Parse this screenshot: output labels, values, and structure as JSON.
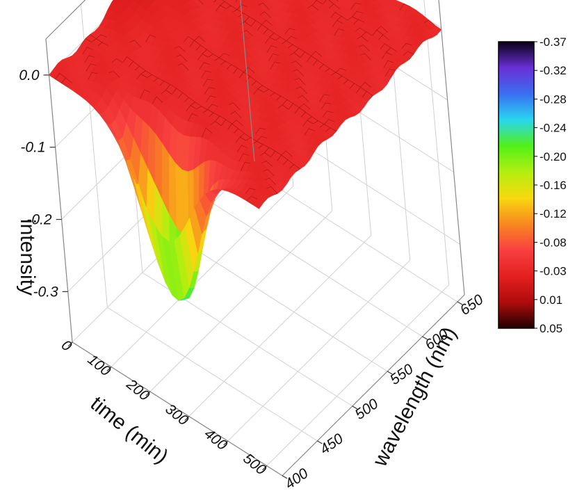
{
  "chart_data": {
    "type": "surface3d",
    "title": "",
    "zlabel": "intensity",
    "xlabel": "time (min)",
    "ylabel": "wavelength (nm)",
    "z_ticks": [
      "0.0",
      "-0.1",
      "-0.2",
      "-0.3"
    ],
    "z_tick_values": [
      0.0,
      -0.1,
      -0.2,
      -0.3
    ],
    "time_ticks": [
      "0",
      "100",
      "200",
      "300",
      "400",
      "500"
    ],
    "time_tick_values": [
      0,
      100,
      200,
      300,
      400,
      500
    ],
    "wavelength_ticks": [
      "400",
      "450",
      "500",
      "550",
      "600",
      "650"
    ],
    "wavelength_tick_values": [
      400,
      450,
      500,
      550,
      600,
      650
    ],
    "time_range": [
      0,
      540
    ],
    "wavelength_range": [
      400,
      660
    ],
    "zlim": [
      -0.37,
      0.05
    ],
    "grid": true,
    "surface": {
      "baseline_intensity": 0.0,
      "dip": {
        "time": 280,
        "wavelength": 410,
        "intensity": -0.24
      },
      "hump": {
        "time": 20,
        "wavelength": 520,
        "intensity": 0.02
      }
    },
    "colorbar": {
      "labels": [
        "-0.37",
        "-0.32",
        "-0.28",
        "-0.24",
        "-0.20",
        "-0.16",
        "-0.12",
        "-0.08",
        "-0.03",
        "0.01",
        "0.05"
      ],
      "values": [
        -0.37,
        -0.32,
        -0.28,
        -0.24,
        -0.2,
        -0.16,
        -0.12,
        -0.08,
        -0.03,
        0.01,
        0.05
      ],
      "colors": [
        "#0a0014",
        "#6a2fd6",
        "#3a6ff0",
        "#28d6f0",
        "#52f018",
        "#b4ee10",
        "#f8d810",
        "#f88820",
        "#f84040",
        "#e42020",
        "#b00c0c",
        "#200000"
      ]
    }
  }
}
